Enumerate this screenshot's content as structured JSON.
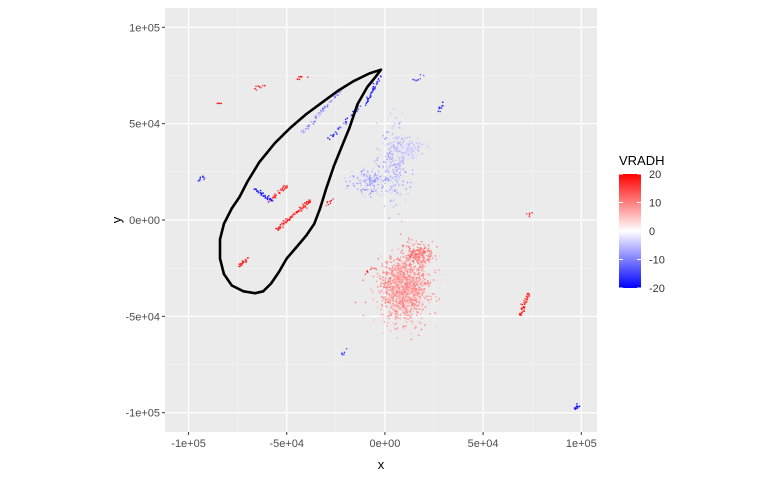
{
  "chart_data": {
    "type": "scatter",
    "xlabel": "x",
    "ylabel": "y",
    "xlim": [
      -112000,
      108000
    ],
    "ylim": [
      -110000,
      110000
    ],
    "x_ticks": [
      -100000,
      -50000,
      0,
      50000,
      100000
    ],
    "x_tick_labels": [
      "-1e+05",
      "-5e+04",
      "0e+00",
      "5e+04",
      "1e+05"
    ],
    "y_ticks": [
      -100000,
      -50000,
      0,
      50000,
      100000
    ],
    "y_tick_labels": [
      "-1e+05",
      "-5e+04",
      "0e+00",
      "5e+04",
      "1e+05"
    ],
    "grid": true,
    "legend": {
      "title": "VRADH",
      "placement": "right",
      "min": -20,
      "max": 20,
      "ticks": [
        20,
        10,
        0,
        -10,
        -20
      ],
      "tick_labels": [
        "20",
        "10",
        "0",
        "-10",
        "-20"
      ],
      "colors": {
        "low": "#0000ff",
        "mid": "#ffffff",
        "high": "#ff0000"
      }
    },
    "outline": {
      "color": "#000000",
      "points": [
        [
          -2000,
          78000
        ],
        [
          -5000,
          74000
        ],
        [
          -9000,
          69000
        ],
        [
          -14000,
          60000
        ],
        [
          -18000,
          48000
        ],
        [
          -22000,
          38000
        ],
        [
          -26000,
          28000
        ],
        [
          -30000,
          16000
        ],
        [
          -33000,
          6000
        ],
        [
          -36000,
          -2000
        ],
        [
          -40000,
          -8000
        ],
        [
          -45000,
          -14000
        ],
        [
          -50000,
          -20000
        ],
        [
          -54000,
          -27000
        ],
        [
          -58000,
          -33000
        ],
        [
          -62000,
          -37000
        ],
        [
          -66000,
          -38000
        ],
        [
          -72000,
          -37000
        ],
        [
          -78000,
          -34000
        ],
        [
          -82000,
          -28000
        ],
        [
          -84000,
          -20000
        ],
        [
          -84000,
          -10000
        ],
        [
          -82000,
          -2000
        ],
        [
          -78000,
          6000
        ],
        [
          -74000,
          12000
        ],
        [
          -70000,
          20000
        ],
        [
          -64000,
          30000
        ],
        [
          -56000,
          40000
        ],
        [
          -48000,
          48000
        ],
        [
          -40000,
          55000
        ],
        [
          -32000,
          61000
        ],
        [
          -24000,
          67000
        ],
        [
          -16000,
          72000
        ],
        [
          -8000,
          76000
        ],
        [
          -2000,
          78000
        ]
      ]
    },
    "clusters": [
      {
        "cx": 10000,
        "cy": -35000,
        "sx": 11000,
        "sy": 16000,
        "n": 1300,
        "vmin": 4,
        "vmax": 11
      },
      {
        "cx": 18000,
        "cy": -18000,
        "sx": 6000,
        "sy": 5000,
        "n": 180,
        "vmin": 6,
        "vmax": 13
      },
      {
        "cx": 5000,
        "cy": 30000,
        "sx": 7000,
        "sy": 18000,
        "n": 260,
        "vmin": -8,
        "vmax": -3
      },
      {
        "cx": 12000,
        "cy": 38000,
        "sx": 6000,
        "sy": 5000,
        "n": 120,
        "vmin": -6,
        "vmax": -2
      },
      {
        "cx": -8000,
        "cy": 20000,
        "sx": 10000,
        "sy": 6000,
        "n": 160,
        "vmin": -10,
        "vmax": -2
      }
    ],
    "streaks": [
      {
        "x1": -55000,
        "y1": -5000,
        "x2": -38000,
        "y2": 10000,
        "n": 90,
        "vmin": 12,
        "vmax": 20
      },
      {
        "x1": -58000,
        "y1": 10000,
        "x2": -50000,
        "y2": 18000,
        "n": 40,
        "vmin": 12,
        "vmax": 18
      },
      {
        "x1": -42000,
        "y1": 45000,
        "x2": -20000,
        "y2": 70000,
        "n": 70,
        "vmin": -12,
        "vmax": -4
      },
      {
        "x1": -10000,
        "y1": 60000,
        "x2": -2000,
        "y2": 75000,
        "n": 40,
        "vmin": -20,
        "vmax": -12
      },
      {
        "x1": -30000,
        "y1": 40000,
        "x2": -12000,
        "y2": 60000,
        "n": 40,
        "vmin": -20,
        "vmax": -10
      },
      {
        "x1": -66000,
        "y1": 16000,
        "x2": -58000,
        "y2": 10000,
        "n": 35,
        "vmin": -20,
        "vmax": -14
      },
      {
        "x1": -74000,
        "y1": -24000,
        "x2": -70000,
        "y2": -20000,
        "n": 25,
        "vmin": 14,
        "vmax": 20
      },
      {
        "x1": 69000,
        "y1": -50000,
        "x2": 73000,
        "y2": -38000,
        "n": 40,
        "vmin": 12,
        "vmax": 20
      },
      {
        "x1": 96000,
        "y1": -98000,
        "x2": 99000,
        "y2": -96000,
        "n": 15,
        "vmin": -20,
        "vmax": -12
      },
      {
        "x1": -66000,
        "y1": 68000,
        "x2": -60000,
        "y2": 70000,
        "n": 8,
        "vmin": 14,
        "vmax": 20
      },
      {
        "x1": -85000,
        "y1": 60000,
        "x2": -83000,
        "y2": 62000,
        "n": 4,
        "vmin": 14,
        "vmax": 20
      },
      {
        "x1": -95000,
        "y1": 20000,
        "x2": -92000,
        "y2": 23000,
        "n": 10,
        "vmin": -20,
        "vmax": -10
      },
      {
        "x1": -45000,
        "y1": 73000,
        "x2": -40000,
        "y2": 75000,
        "n": 8,
        "vmin": 14,
        "vmax": 20
      },
      {
        "x1": 15000,
        "y1": 72000,
        "x2": 20000,
        "y2": 75000,
        "n": 8,
        "vmin": -20,
        "vmax": -10
      },
      {
        "x1": 27000,
        "y1": 55000,
        "x2": 30000,
        "y2": 62000,
        "n": 10,
        "vmin": -20,
        "vmax": -12
      },
      {
        "x1": -10000,
        "y1": -28000,
        "x2": -5000,
        "y2": -25000,
        "n": 8,
        "vmin": 10,
        "vmax": 18
      },
      {
        "x1": 73000,
        "y1": 2000,
        "x2": 75000,
        "y2": 4000,
        "n": 6,
        "vmin": 10,
        "vmax": 18
      },
      {
        "x1": -22000,
        "y1": -70000,
        "x2": -20000,
        "y2": -67000,
        "n": 6,
        "vmin": -20,
        "vmax": -10
      },
      {
        "x1": -30000,
        "y1": 8000,
        "x2": -27000,
        "y2": 10000,
        "n": 8,
        "vmin": 12,
        "vmax": 20
      }
    ],
    "seed": 20240611
  }
}
